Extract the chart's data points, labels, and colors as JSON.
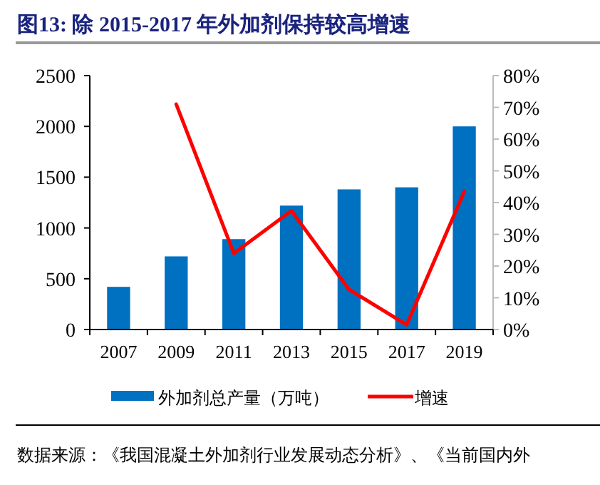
{
  "chart_data": {
    "type": "bar",
    "title": "图13:  除 2015-2017 年外加剂保持较高增速",
    "categories": [
      "2007",
      "2009",
      "2011",
      "2013",
      "2015",
      "2017",
      "2019"
    ],
    "series": [
      {
        "name": "外加剂总产量（万吨）",
        "color": "#0070c0",
        "values": [
          420,
          720,
          890,
          1220,
          1380,
          1400,
          2000
        ]
      },
      {
        "name": "增速",
        "type": "line",
        "axis": "y2",
        "color": "#ff0000",
        "values": [
          null,
          71,
          24,
          37.4,
          12.6,
          1.5,
          43.5
        ]
      }
    ],
    "ylim": [
      0,
      2500
    ],
    "yticks": [
      0,
      500,
      1000,
      1500,
      2000,
      2500
    ],
    "y2lim": [
      0,
      80
    ],
    "y2ticks": [
      {
        "value": 0,
        "label": "0%"
      },
      {
        "value": 10,
        "label": "10%"
      },
      {
        "value": 20,
        "label": "20%"
      },
      {
        "value": 30,
        "label": "30%"
      },
      {
        "value": 40,
        "label": "40%"
      },
      {
        "value": 50,
        "label": "50%"
      },
      {
        "value": 60,
        "label": "60%"
      },
      {
        "value": 70,
        "label": "70%"
      },
      {
        "value": 80,
        "label": "80%"
      }
    ],
    "legend": "bottom",
    "marker": "none",
    "annotations": [
      "数据来源：《我国混凝土外加剂行业发展动态分析》、《当前国内外"
    ]
  }
}
